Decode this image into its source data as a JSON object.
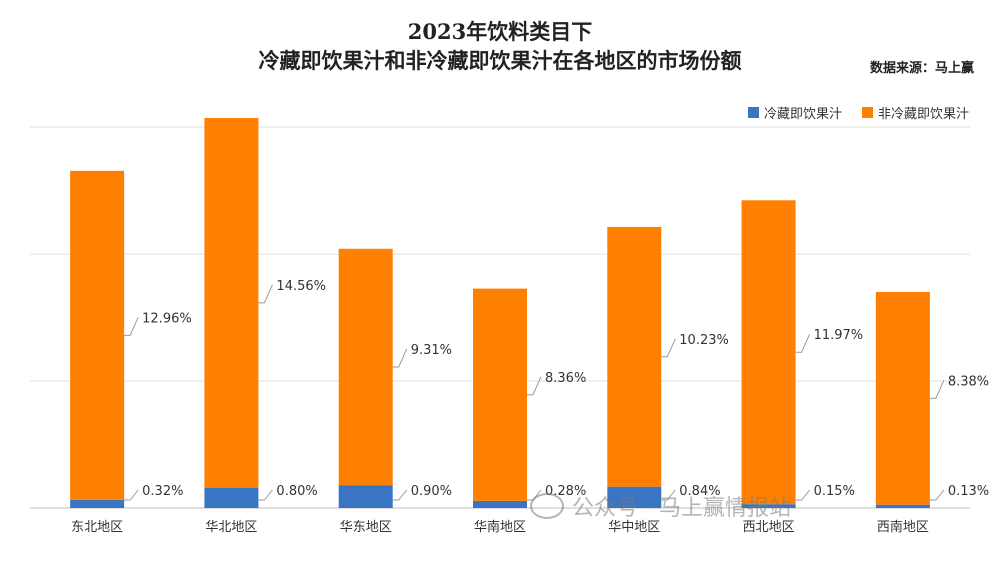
{
  "chart_data": {
    "type": "bar",
    "stacked": true,
    "title": "2023年饮料类目下",
    "subtitle": "冷藏即饮果汁和非冷藏即饮果汁在各地区的市场份额",
    "source": "数据来源：马上赢",
    "categories": [
      "东北地区",
      "华北地区",
      "华东地区",
      "华南地区",
      "华中地区",
      "西北地区",
      "西南地区"
    ],
    "series": [
      {
        "name": "冷藏即饮果汁",
        "color": "#3a75c4",
        "values": [
          0.32,
          0.8,
          0.9,
          0.28,
          0.84,
          0.15,
          0.13
        ],
        "labels": [
          "0.32%",
          "0.80%",
          "0.90%",
          "0.28%",
          "0.84%",
          "0.15%",
          "0.13%"
        ]
      },
      {
        "name": "非冷藏即饮果汁",
        "color": "#ff8000",
        "values": [
          12.96,
          14.56,
          9.31,
          8.36,
          10.23,
          11.97,
          8.38
        ],
        "labels": [
          "12.96%",
          "14.56%",
          "9.31%",
          "8.36%",
          "10.23%",
          "11.97%",
          "8.38%"
        ]
      }
    ],
    "ylim": [
      0,
      15.4
    ],
    "grid": true,
    "legend_position": "top-right"
  },
  "watermark": "公众号 · 马上赢情报站"
}
